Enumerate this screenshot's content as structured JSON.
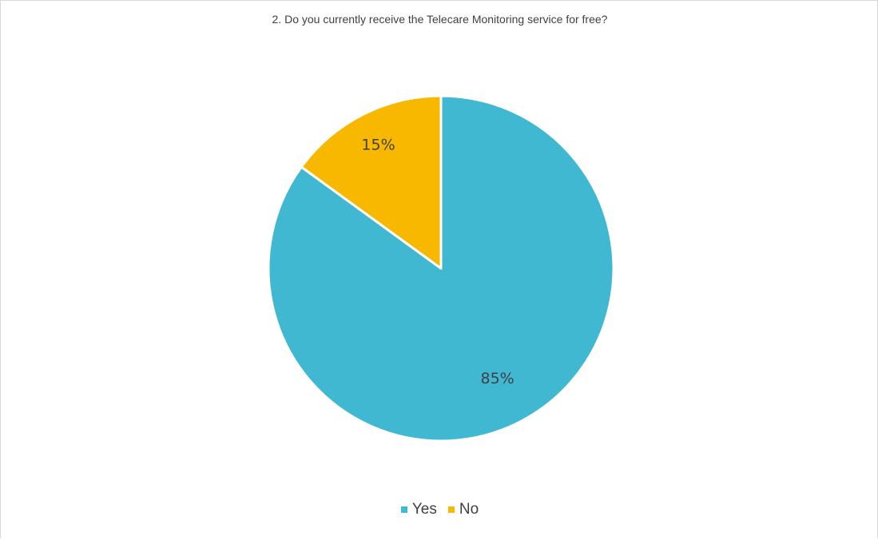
{
  "chart_data": {
    "type": "pie",
    "title": "2. Do you currently receive the Telecare Monitoring service for free?",
    "categories": [
      "Yes",
      "No"
    ],
    "values": [
      85,
      15
    ],
    "data_labels": [
      "85%",
      "15%"
    ],
    "colors": [
      "#41B8D2",
      "#F9B800"
    ],
    "legend_position": "bottom",
    "start_angle_deg": 0,
    "direction": "clockwise"
  },
  "legend": {
    "items": [
      {
        "label": "Yes",
        "color": "#41B8D2"
      },
      {
        "label": "No",
        "color": "#F9B800"
      }
    ]
  }
}
